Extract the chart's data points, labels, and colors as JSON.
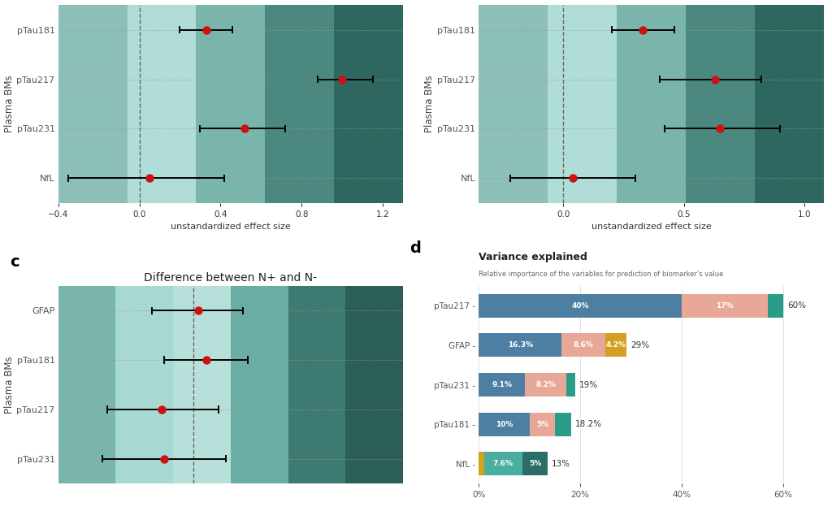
{
  "panel_a": {
    "markers": [
      "pTau181",
      "pTau217",
      "pTau231",
      "NfL"
    ],
    "values": [
      0.33,
      1.0,
      0.52,
      0.05
    ],
    "ci_low": [
      0.2,
      0.88,
      0.3,
      -0.35
    ],
    "ci_high": [
      0.46,
      1.15,
      0.72,
      0.42
    ],
    "xlim": [
      -0.4,
      1.3
    ],
    "xticks": [
      -0.4,
      0.0,
      0.4,
      0.8,
      1.2
    ],
    "xlabel": "unstandardized effect size"
  },
  "panel_b": {
    "markers": [
      "pTau181",
      "pTau217",
      "pTau231",
      "NfL"
    ],
    "values": [
      0.33,
      0.63,
      0.65,
      0.04
    ],
    "ci_low": [
      0.2,
      0.4,
      0.42,
      -0.22
    ],
    "ci_high": [
      0.46,
      0.82,
      0.9,
      0.3
    ],
    "xlim": [
      -0.35,
      1.08
    ],
    "xticks": [
      0.0,
      0.5,
      1.0
    ],
    "xlabel": "unstandardized effect size"
  },
  "panel_c": {
    "title": "Difference between N+ and N-",
    "markers": [
      "GFAP",
      "pTau181",
      "pTau217",
      "pTau231"
    ],
    "values": [
      0.02,
      0.05,
      -0.13,
      -0.12
    ],
    "ci_low": [
      -0.17,
      -0.12,
      -0.35,
      -0.37
    ],
    "ci_high": [
      0.2,
      0.22,
      0.1,
      0.13
    ],
    "xlim": [
      -0.55,
      0.85
    ],
    "vline": 0.0
  },
  "panel_d": {
    "title": "Variance explained",
    "subtitle": "Relative importance of the variables for prediction of biomarker's value",
    "markers": [
      "pTau217",
      "GFAP",
      "pTau231",
      "pTau181",
      "NfL"
    ],
    "bar_data": [
      {
        "vals": [
          40,
          17,
          3
        ],
        "colors": [
          "#4d7fa3",
          "#e8a898",
          "#2a9d8a"
        ],
        "total": "60%"
      },
      {
        "vals": [
          16.3,
          8.6,
          4.2
        ],
        "colors": [
          "#4d7fa3",
          "#e8a898",
          "#d4a020"
        ],
        "total": "29%"
      },
      {
        "vals": [
          9.1,
          8.2,
          1.7
        ],
        "colors": [
          "#4d7fa3",
          "#e8a898",
          "#2a9d8a"
        ],
        "total": "19%"
      },
      {
        "vals": [
          10,
          5,
          3.2
        ],
        "colors": [
          "#4d7fa3",
          "#e8a898",
          "#2a9d8a"
        ],
        "total": "18.2%"
      },
      {
        "vals": [
          1.0,
          7.6,
          5
        ],
        "colors": [
          "#d4a020",
          "#4aada0",
          "#2a6e65"
        ],
        "total": "13%"
      }
    ],
    "bar_labels": [
      [
        "40%",
        "17%",
        ""
      ],
      [
        "16.3%",
        "8.6%",
        "4.2%"
      ],
      [
        "9.1%",
        "8.2%",
        ""
      ],
      [
        "10%",
        "5%",
        ""
      ],
      [
        "",
        "7.6%",
        "5%"
      ]
    ],
    "xticks": [
      0,
      20,
      40,
      60
    ],
    "xticklabels": [
      "0%",
      "20%",
      "40%",
      "60%"
    ]
  },
  "stripe_colors_ab": [
    "#8cbfb8",
    "#b0ddd8",
    "#7ab5ac",
    "#4a8880",
    "#2e6660"
  ],
  "stripe_colors_c": [
    "#7ab5ac",
    "#a8d8d2",
    "#b8e0da",
    "#6aada4",
    "#3d7a72",
    "#2a5e57"
  ],
  "dot_color": "#cc1111",
  "ylabel": "Plasma BMs"
}
